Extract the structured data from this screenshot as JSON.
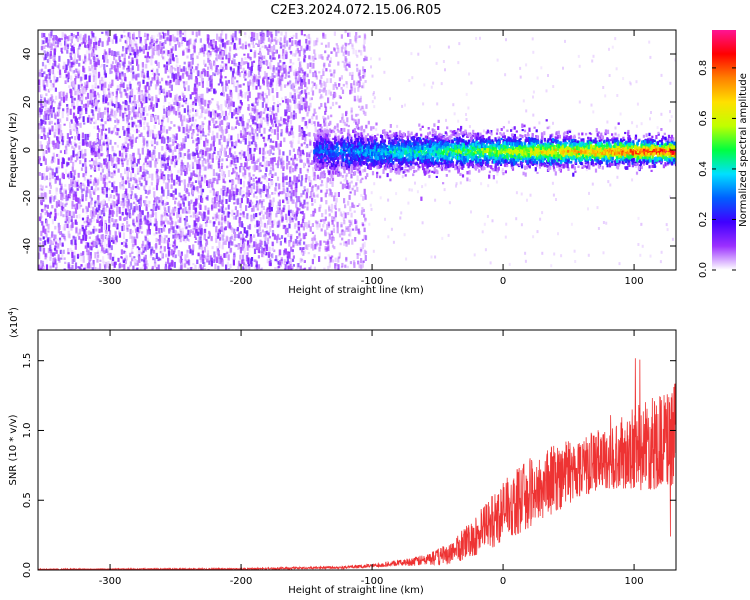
{
  "figure": {
    "title": "C2E3.2024.072.15.06.R05"
  },
  "chart_data": [
    {
      "type": "heatmap",
      "xlabel": "Height of straight line (km)",
      "ylabel": "Frequency (Hz)",
      "xlim": [
        -355,
        132
      ],
      "ylim": [
        -50,
        50
      ],
      "xticks": [
        -300,
        -200,
        -100,
        0,
        100
      ],
      "yticks": [
        -40,
        -20,
        0,
        20,
        40
      ],
      "xtick_labels": [
        "-300",
        "-200",
        "-100",
        "0",
        "100"
      ],
      "ytick_labels": [
        "-40",
        "-20",
        "0",
        "20",
        "40"
      ],
      "colorbar": {
        "label": "Normalized spectral amplitude",
        "range": [
          0,
          0.95
        ],
        "ticks": [
          0.0,
          0.2,
          0.4,
          0.6,
          0.8
        ],
        "tick_labels": [
          "0.0",
          "0.2",
          "0.4",
          "0.6",
          "0.8"
        ],
        "colormap": [
          "#ffffff",
          "#9b30ff",
          "#3f00ff",
          "#0060ff",
          "#00e0ff",
          "#00ff40",
          "#c0ff00",
          "#ffe000",
          "#ff8000",
          "#ff0000",
          "#ff1493"
        ]
      },
      "regions": [
        {
          "x": [
            -355,
            -150
          ],
          "freq": [
            -50,
            50
          ],
          "level": 0.05,
          "description": "broadband noise"
        },
        {
          "x": [
            -150,
            -105
          ],
          "freq": [
            -50,
            50
          ],
          "level": 0.04,
          "description": "noise tapering"
        },
        {
          "x": [
            -145,
            132
          ],
          "freq_center": 0,
          "freq_halfwidth": 7,
          "level": [
            0.25,
            0.9
          ],
          "description": "signal band near 0 Hz"
        }
      ]
    },
    {
      "type": "line",
      "xlabel": "Height of straight line (km)",
      "ylabel": "SNR (10 * v/v)",
      "scale_label": "(x10",
      "scale_exponent": "4",
      "scale_close": ")",
      "xlim": [
        -355,
        132
      ],
      "ylim": [
        0,
        1.72
      ],
      "xticks": [
        -300,
        -200,
        -100,
        0,
        100
      ],
      "yticks": [
        0.0,
        0.5,
        1.0,
        1.5
      ],
      "xtick_labels": [
        "-300",
        "-200",
        "-100",
        "0",
        "100"
      ],
      "ytick_labels": [
        "0.0",
        "0.5",
        "1.0",
        "1.5"
      ],
      "series": [
        {
          "color": "#ee3333",
          "envelope_x": [
            -355,
            -200,
            -120,
            -100,
            -80,
            -60,
            -40,
            -20,
            0,
            20,
            40,
            60,
            80,
            100,
            120,
            132
          ],
          "envelope_mean": [
            0.005,
            0.007,
            0.02,
            0.03,
            0.05,
            0.07,
            0.12,
            0.25,
            0.42,
            0.55,
            0.66,
            0.75,
            0.8,
            0.87,
            0.92,
            0.95
          ],
          "envelope_spread": [
            0.004,
            0.005,
            0.01,
            0.015,
            0.02,
            0.04,
            0.08,
            0.15,
            0.22,
            0.25,
            0.25,
            0.22,
            0.22,
            0.3,
            0.35,
            0.4
          ]
        }
      ]
    }
  ]
}
